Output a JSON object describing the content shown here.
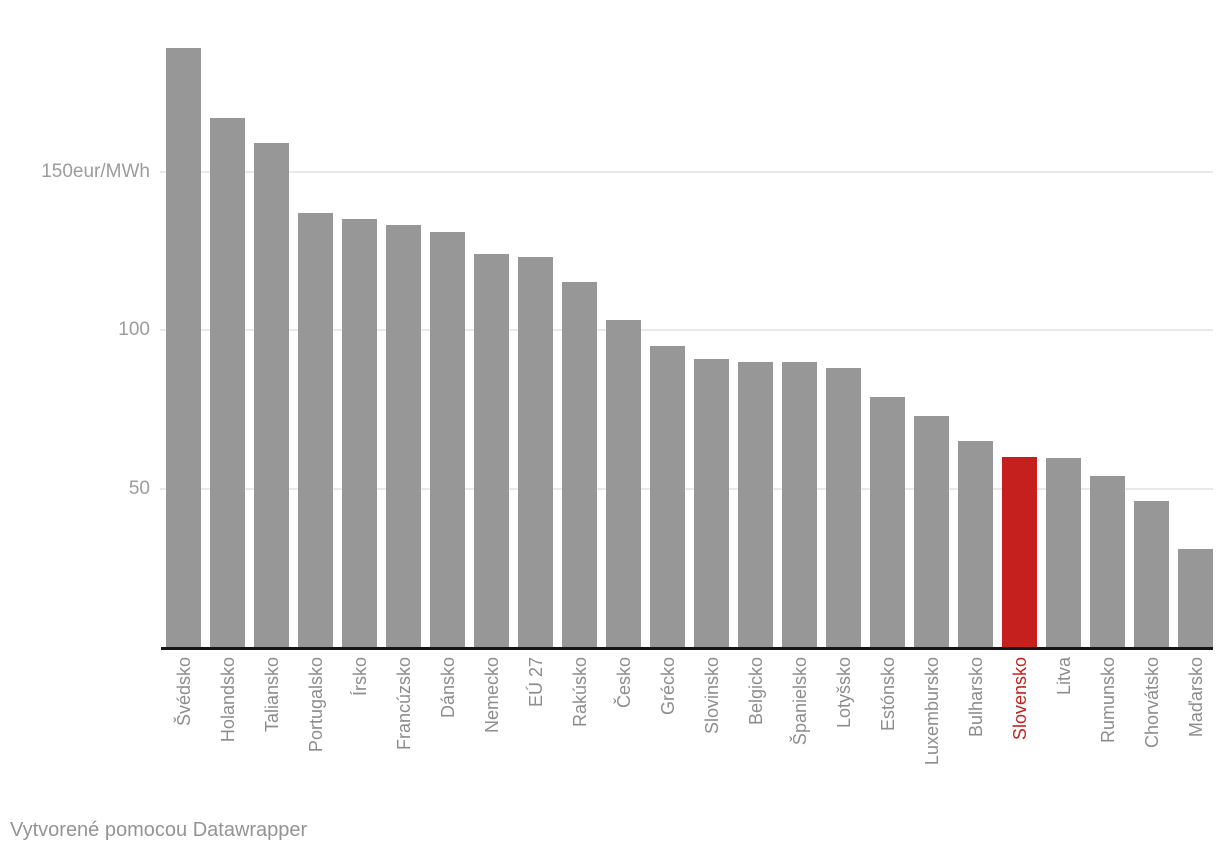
{
  "chart_data": {
    "type": "bar",
    "title": "",
    "categories": [
      "Švédsko",
      "Holandsko",
      "Taliansko",
      "Portugalsko",
      "Írsko",
      "Francúzsko",
      "Dánsko",
      "Nemecko",
      "EÚ 27",
      "Rakúsko",
      "Česko",
      "Grécko",
      "Slovinsko",
      "Belgicko",
      "Španielsko",
      "Lotyšsko",
      "Estónsko",
      "Luxembursko",
      "Bulharsko",
      "Slovensko",
      "Litva",
      "Rumunsko",
      "Chorvátsko",
      "Maďarsko"
    ],
    "values": [
      189,
      167,
      159,
      137,
      135,
      133,
      131,
      124,
      123,
      115,
      103,
      95,
      91,
      90,
      90,
      88,
      79,
      73,
      65,
      60,
      59.5,
      54,
      46,
      31
    ],
    "unit": "eur/MWh",
    "highlight_category": "Slovensko",
    "yticks": [
      {
        "value": 50,
        "label": "50"
      },
      {
        "value": 100,
        "label": "100"
      },
      {
        "value": 150,
        "label": "150eur/MWh"
      }
    ],
    "ylim": [
      0,
      204
    ],
    "grid": true,
    "legend": "none",
    "colors": {
      "bar": "#979797",
      "highlight": "#c51f1e",
      "gridline": "#e9e9e9",
      "axis": "#161616",
      "ytick_text": "#9c9c9c",
      "xtick_text": "#8d8d8d",
      "highlight_text": "#c51f1e"
    }
  },
  "footer": {
    "attribution": "Vytvorené pomocou Datawrapper"
  }
}
